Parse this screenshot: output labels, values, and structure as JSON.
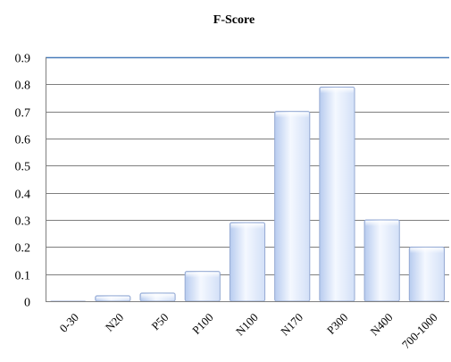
{
  "chart_data": {
    "type": "bar",
    "title": "F-Score",
    "xlabel": "",
    "ylabel": "",
    "categories": [
      "0-30",
      "N20",
      "P50",
      "P100",
      "N100",
      "N170",
      "P300",
      "N400",
      "700-1000"
    ],
    "values": [
      0,
      0.02,
      0.03,
      0.11,
      0.29,
      0.7,
      0.79,
      0.3,
      0.2
    ],
    "ylim": [
      0,
      0.9
    ],
    "yticks": [
      "0",
      "0.1",
      "0.2",
      "0.3",
      "0.4",
      "0.5",
      "0.6",
      "0.7",
      "0.8",
      "0.9"
    ],
    "grid": true,
    "legend": "none",
    "colors": {
      "bar_light": "#f4f8ff",
      "bar_mid": "#d3e0f7",
      "bar_dark": "#b7cbef",
      "bar_edge": "#95aad3",
      "gridline": "#7f7f7f",
      "axis": "#4a7ebb"
    }
  }
}
